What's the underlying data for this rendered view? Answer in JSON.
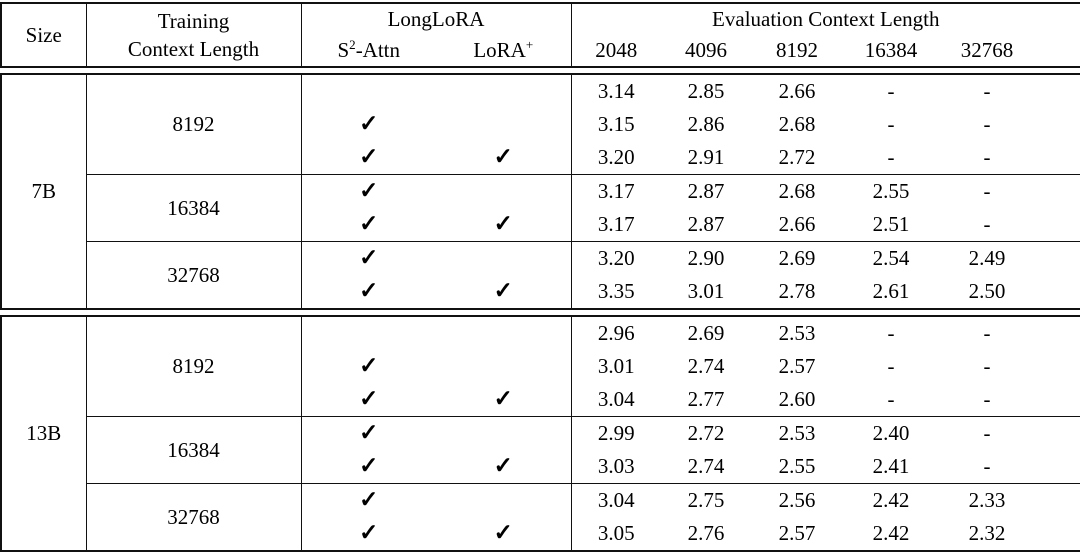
{
  "table": {
    "header": {
      "size": "Size",
      "training_line1": "Training",
      "training_line2": "Context Length",
      "longlora": "LongLoRA",
      "s2attn_base": "S",
      "s2attn_sup": "2",
      "s2attn_rest": "-Attn",
      "lorap_base": "LoRA",
      "lorap_sup": "+",
      "eval_group": "Evaluation Context Length",
      "eval_lengths": [
        "2048",
        "4096",
        "8192",
        "16384",
        "32768"
      ]
    },
    "checkmark": "✓",
    "empty": "",
    "sections": [
      {
        "size": "7B",
        "groups": [
          {
            "training_length": "8192",
            "rows": [
              {
                "s2_attn": false,
                "lora_plus": false,
                "values": [
                  "3.14",
                  "2.85",
                  "2.66",
                  "-",
                  "-"
                ]
              },
              {
                "s2_attn": true,
                "lora_plus": false,
                "values": [
                  "3.15",
                  "2.86",
                  "2.68",
                  "-",
                  "-"
                ]
              },
              {
                "s2_attn": true,
                "lora_plus": true,
                "values": [
                  "3.20",
                  "2.91",
                  "2.72",
                  "-",
                  "-"
                ]
              }
            ]
          },
          {
            "training_length": "16384",
            "rows": [
              {
                "s2_attn": true,
                "lora_plus": false,
                "values": [
                  "3.17",
                  "2.87",
                  "2.68",
                  "2.55",
                  "-"
                ]
              },
              {
                "s2_attn": true,
                "lora_plus": true,
                "values": [
                  "3.17",
                  "2.87",
                  "2.66",
                  "2.51",
                  "-"
                ]
              }
            ]
          },
          {
            "training_length": "32768",
            "rows": [
              {
                "s2_attn": true,
                "lora_plus": false,
                "values": [
                  "3.20",
                  "2.90",
                  "2.69",
                  "2.54",
                  "2.49"
                ]
              },
              {
                "s2_attn": true,
                "lora_plus": true,
                "values": [
                  "3.35",
                  "3.01",
                  "2.78",
                  "2.61",
                  "2.50"
                ]
              }
            ]
          }
        ]
      },
      {
        "size": "13B",
        "groups": [
          {
            "training_length": "8192",
            "rows": [
              {
                "s2_attn": false,
                "lora_plus": false,
                "values": [
                  "2.96",
                  "2.69",
                  "2.53",
                  "-",
                  "-"
                ]
              },
              {
                "s2_attn": true,
                "lora_plus": false,
                "values": [
                  "3.01",
                  "2.74",
                  "2.57",
                  "-",
                  "-"
                ]
              },
              {
                "s2_attn": true,
                "lora_plus": true,
                "values": [
                  "3.04",
                  "2.77",
                  "2.60",
                  "-",
                  "-"
                ]
              }
            ]
          },
          {
            "training_length": "16384",
            "rows": [
              {
                "s2_attn": true,
                "lora_plus": false,
                "values": [
                  "2.99",
                  "2.72",
                  "2.53",
                  "2.40",
                  "-"
                ]
              },
              {
                "s2_attn": true,
                "lora_plus": true,
                "values": [
                  "3.03",
                  "2.74",
                  "2.55",
                  "2.41",
                  "-"
                ]
              }
            ]
          },
          {
            "training_length": "32768",
            "rows": [
              {
                "s2_attn": true,
                "lora_plus": false,
                "values": [
                  "3.04",
                  "2.75",
                  "2.56",
                  "2.42",
                  "2.33"
                ]
              },
              {
                "s2_attn": true,
                "lora_plus": true,
                "values": [
                  "3.05",
                  "2.76",
                  "2.57",
                  "2.42",
                  "2.32"
                ]
              }
            ]
          }
        ]
      }
    ]
  }
}
